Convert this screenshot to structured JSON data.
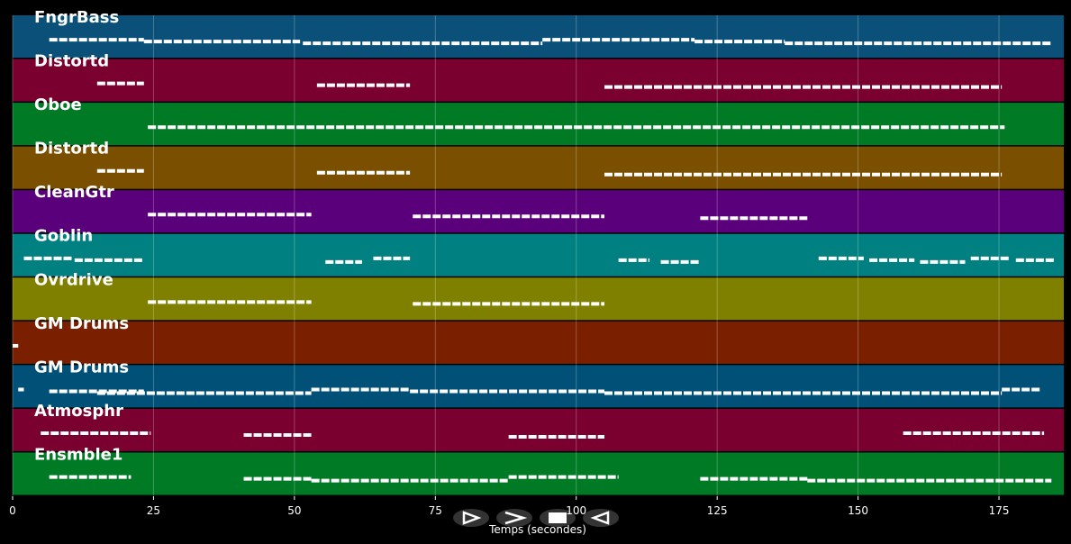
{
  "chart_data": {
    "type": "pianoroll",
    "xlabel": "Temps (secondes)",
    "xlim": [
      0,
      186.5
    ],
    "xticks": [
      0,
      25,
      50,
      75,
      100,
      125,
      150,
      175
    ],
    "grid": true,
    "tracks": [
      {
        "name": "FngrBass",
        "color": "#0a5078",
        "notes": [
          [
            6.5,
            23.3
          ],
          [
            23.3,
            51
          ],
          [
            51.5,
            94
          ],
          [
            94,
            121
          ],
          [
            121,
            137
          ],
          [
            137,
            184.3
          ]
        ]
      },
      {
        "name": "Distortd",
        "color": "#7a0030",
        "notes": [
          [
            15,
            23.3
          ],
          [
            54,
            70.5
          ],
          [
            105,
            175.5
          ]
        ]
      },
      {
        "name": "Oboe",
        "color": "#007a25",
        "notes": [
          [
            24,
            176
          ]
        ]
      },
      {
        "name": "Distortd",
        "color": "#7a5000",
        "notes": [
          [
            15,
            23.3
          ],
          [
            54,
            70.5
          ],
          [
            105,
            175.5
          ]
        ]
      },
      {
        "name": "CleanGtr",
        "color": "#5a007a",
        "notes": [
          [
            24,
            53
          ],
          [
            71,
            105
          ],
          [
            122,
            141
          ]
        ]
      },
      {
        "name": "Goblin",
        "color": "#008080",
        "notes": [
          [
            2,
            10.5
          ],
          [
            11,
            23.3
          ],
          [
            55.5,
            62
          ],
          [
            64,
            70.5
          ],
          [
            107.5,
            113
          ],
          [
            115,
            122
          ],
          [
            143,
            151
          ],
          [
            152,
            160
          ],
          [
            161,
            169
          ],
          [
            170,
            177
          ],
          [
            178,
            185
          ]
        ]
      },
      {
        "name": "Ovrdrive",
        "color": "#808000",
        "notes": [
          [
            24,
            53
          ],
          [
            71,
            105
          ]
        ]
      },
      {
        "name": "GM Drums",
        "color": "#7a2000",
        "notes": [
          [
            0,
            1
          ]
        ]
      },
      {
        "name": "GM Drums",
        "color": "#005078",
        "notes": [
          [
            1,
            2
          ],
          [
            6.5,
            23.3
          ],
          [
            15,
            53
          ],
          [
            53,
            70.5
          ],
          [
            70.5,
            105
          ],
          [
            105,
            175.5
          ],
          [
            175.5,
            182.5
          ]
        ]
      },
      {
        "name": "Atmosphr",
        "color": "#7a0030",
        "notes": [
          [
            5,
            24.5
          ],
          [
            41,
            53
          ],
          [
            88,
            105
          ],
          [
            158,
            183
          ]
        ]
      },
      {
        "name": "Ensmble1",
        "color": "#007a25",
        "notes": [
          [
            6.5,
            21
          ],
          [
            41,
            53
          ],
          [
            53,
            88
          ],
          [
            88,
            107.5
          ],
          [
            122,
            141
          ],
          [
            141,
            184.3
          ]
        ]
      }
    ]
  }
}
